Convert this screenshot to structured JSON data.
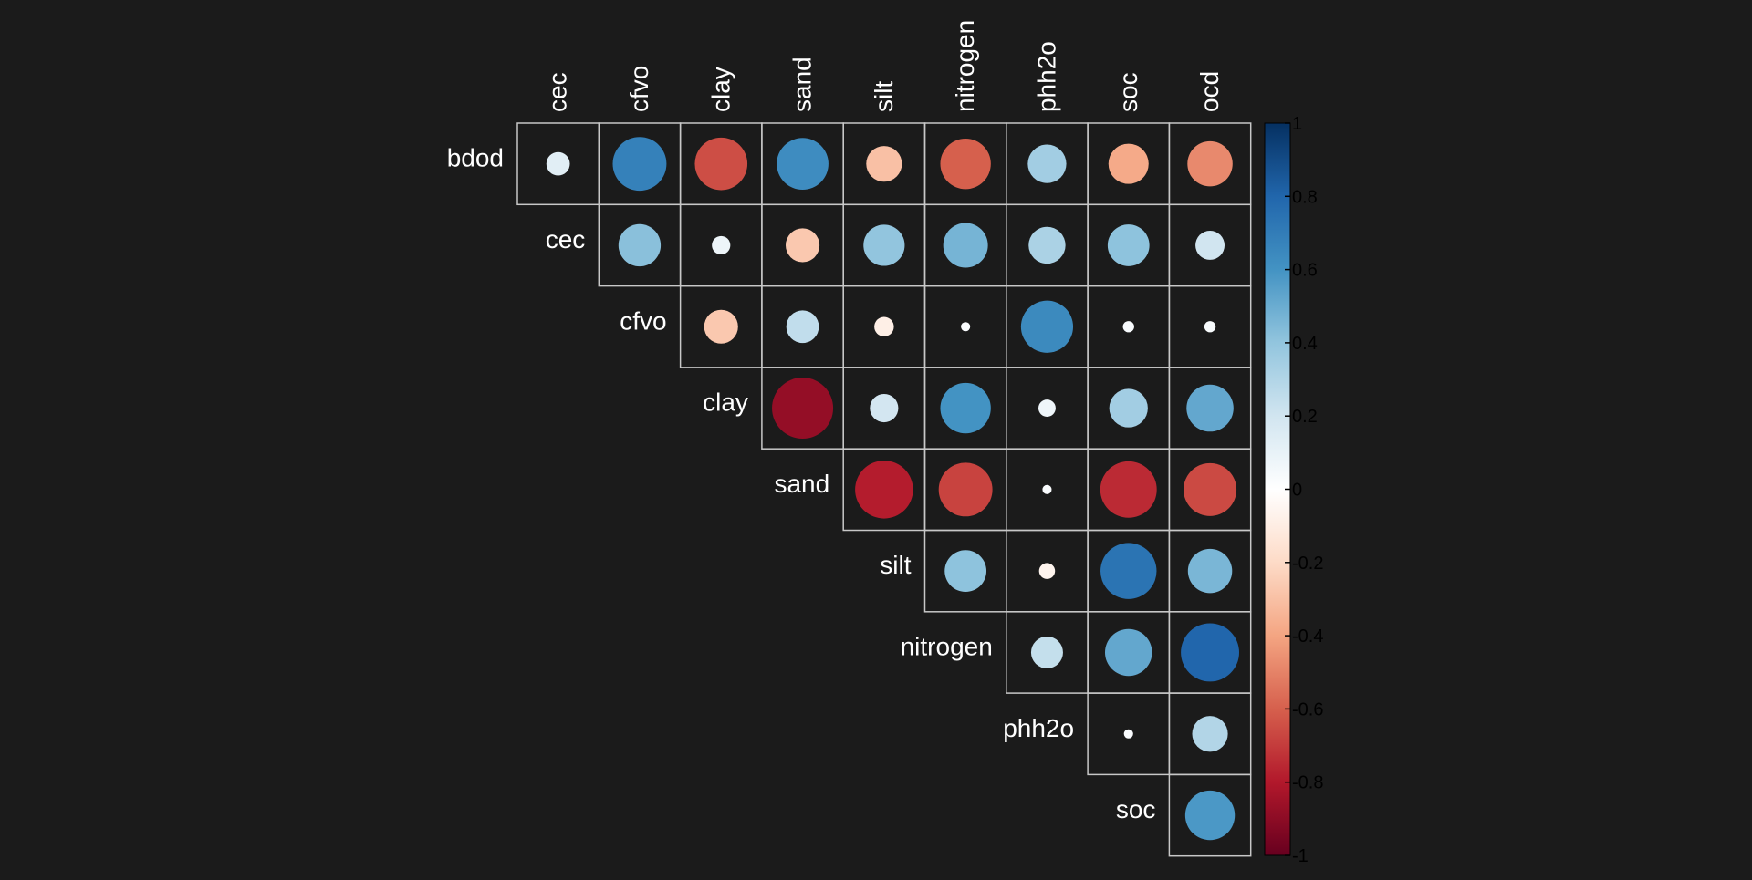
{
  "chart_data": {
    "type": "heatmap",
    "subtype": "correlation-circle-upper-triangle",
    "row_labels": [
      "bdod",
      "cec",
      "cfvo",
      "clay",
      "sand",
      "silt",
      "nitrogen",
      "phh2o",
      "soc"
    ],
    "column_labels": [
      "cec",
      "cfvo",
      "clay",
      "sand",
      "silt",
      "nitrogen",
      "phh2o",
      "soc",
      "ocd"
    ],
    "matrix": [
      [
        0.13,
        0.68,
        -0.65,
        0.63,
        -0.3,
        -0.6,
        0.35,
        -0.38,
        -0.48
      ],
      [
        null,
        0.42,
        0.08,
        -0.27,
        0.4,
        0.47,
        0.32,
        0.41,
        0.2
      ],
      [
        null,
        null,
        -0.27,
        0.25,
        -0.09,
        0.02,
        0.64,
        0.03,
        0.03
      ],
      [
        null,
        null,
        null,
        -0.88,
        0.19,
        0.6,
        0.07,
        0.35,
        0.52
      ],
      [
        null,
        null,
        null,
        null,
        -0.79,
        -0.68,
        0.02,
        -0.75,
        -0.66
      ],
      [
        null,
        null,
        null,
        null,
        null,
        0.41,
        -0.06,
        0.74,
        0.46
      ],
      [
        null,
        null,
        null,
        null,
        null,
        null,
        0.24,
        0.52,
        0.8
      ],
      [
        null,
        null,
        null,
        null,
        null,
        null,
        null,
        0.02,
        0.3
      ],
      [
        null,
        null,
        null,
        null,
        null,
        null,
        null,
        null,
        0.58
      ]
    ],
    "colorbar": {
      "min": -1,
      "max": 1,
      "tick_labels": [
        "1",
        "0.8",
        "0.6",
        "0.4",
        "0.2",
        "0",
        "-0.2",
        "-0.4",
        "-0.6",
        "-0.8",
        "-1"
      ],
      "tick_values": [
        1,
        0.8,
        0.6,
        0.4,
        0.2,
        0,
        -0.2,
        -0.4,
        -0.6,
        -0.8,
        -1
      ]
    },
    "palette": [
      "#67001f",
      "#b2182b",
      "#d6604d",
      "#f4a582",
      "#fddbc7",
      "#ffffff",
      "#d1e5f0",
      "#92c5de",
      "#4393c3",
      "#2166ac",
      "#053061"
    ],
    "colors": {
      "background": "#1b1b1b",
      "grid": "#c8c8c8",
      "label_text": "#ffffff",
      "colorbar_text": "#000000"
    }
  }
}
